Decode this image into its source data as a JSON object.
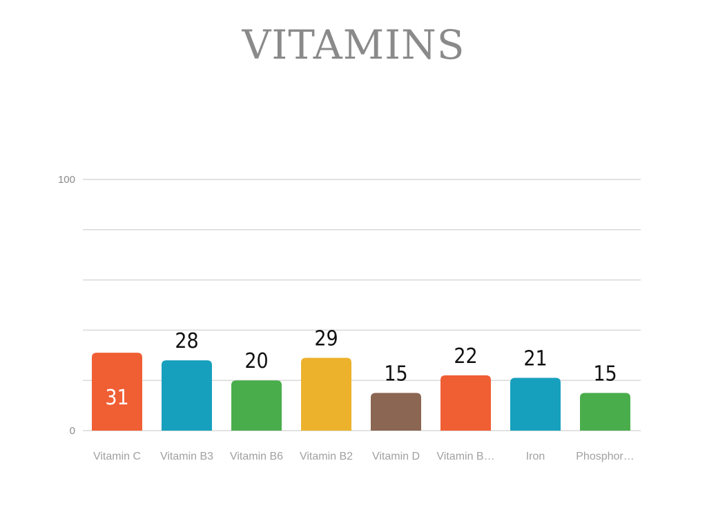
{
  "chart_data": {
    "type": "bar",
    "title": "VITAMINS",
    "categories": [
      "Vitamin C",
      "Vitamin B3",
      "Vitamin B6",
      "Vitamin B2",
      "Vitamin D",
      "Vitamin B…",
      "Iron",
      "Phosphor…"
    ],
    "values": [
      31,
      28,
      20,
      29,
      15,
      22,
      21,
      15
    ],
    "colors": [
      "#f05e34",
      "#17a0bd",
      "#49ad4c",
      "#ecb22c",
      "#8b6653",
      "#f05e34",
      "#17a0bd",
      "#49ad4c"
    ],
    "ylim": [
      0,
      100
    ],
    "yticks": [
      0,
      100
    ],
    "gridlines": [
      0,
      20,
      40,
      60,
      80,
      100
    ],
    "label_inside_color": "#ffffff",
    "label_outside_color": "#111111",
    "grid": true
  }
}
